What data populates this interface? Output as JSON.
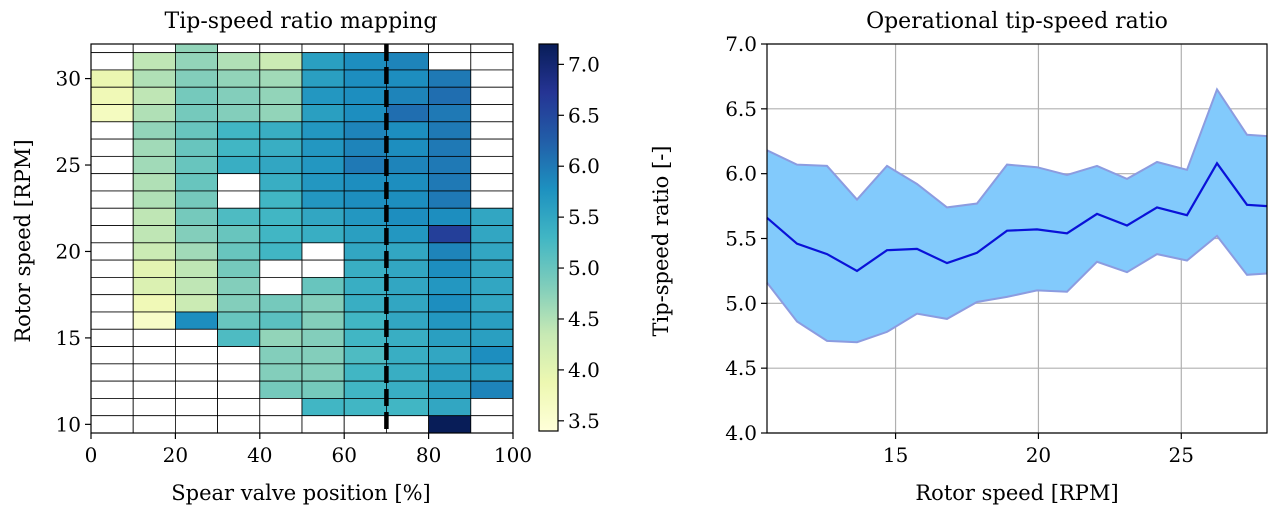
{
  "chart_data": [
    {
      "type": "heatmap",
      "title": "Tip-speed ratio mapping",
      "xlabel": "Spear valve position [%]",
      "ylabel": "Rotor speed [RPM]",
      "xlim": [
        0,
        100
      ],
      "ylim": [
        9.5,
        32
      ],
      "xticks": [
        "0",
        "20",
        "40",
        "60",
        "80",
        "100"
      ],
      "yticks": [
        "10",
        "15",
        "20",
        "25",
        "30"
      ],
      "x_bins": [
        0,
        10,
        20,
        30,
        40,
        50,
        60,
        70,
        80,
        90,
        100
      ],
      "rpm_rows": [
        31.5,
        30.5,
        29.5,
        28.5,
        27.5,
        26.5,
        25.5,
        24.5,
        23.5,
        22.5,
        21.5,
        20.5,
        19.5,
        18.5,
        17.5,
        16.5,
        15.5,
        14.5,
        13.5,
        12.5,
        11.5,
        10.5,
        9.5
      ],
      "values": [
        [
          null,
          null,
          4.7,
          null,
          null,
          null,
          null,
          null,
          null,
          null
        ],
        [
          null,
          4.4,
          4.7,
          4.5,
          4.3,
          5.6,
          5.8,
          5.9,
          null,
          null
        ],
        [
          3.9,
          4.5,
          4.8,
          4.7,
          4.6,
          5.6,
          5.8,
          5.8,
          6.0,
          null
        ],
        [
          3.8,
          4.4,
          4.9,
          4.8,
          4.7,
          5.7,
          5.8,
          5.9,
          6.1,
          null
        ],
        [
          3.7,
          4.5,
          4.9,
          4.8,
          4.7,
          5.6,
          5.8,
          6.1,
          6.0,
          null
        ],
        [
          null,
          4.7,
          5.0,
          5.3,
          5.4,
          5.7,
          5.9,
          5.8,
          6.0,
          null
        ],
        [
          null,
          4.6,
          5.0,
          5.3,
          5.4,
          5.7,
          5.9,
          5.8,
          6.0,
          null
        ],
        [
          null,
          4.6,
          5.0,
          5.4,
          5.5,
          5.7,
          6.0,
          5.9,
          6.0,
          null
        ],
        [
          null,
          4.5,
          5.0,
          null,
          5.4,
          5.7,
          5.8,
          5.8,
          6.0,
          null
        ],
        [
          null,
          4.5,
          4.9,
          null,
          5.3,
          5.7,
          5.8,
          5.8,
          6.0,
          null
        ],
        [
          null,
          4.4,
          4.9,
          5.2,
          5.3,
          5.5,
          5.7,
          5.8,
          5.8,
          5.5
        ],
        [
          null,
          4.4,
          4.8,
          5.0,
          5.3,
          5.4,
          5.6,
          5.7,
          6.6,
          5.5
        ],
        [
          null,
          4.3,
          4.6,
          5.0,
          5.3,
          null,
          5.5,
          5.5,
          5.9,
          5.5
        ],
        [
          null,
          4.0,
          4.4,
          4.9,
          null,
          null,
          5.4,
          5.5,
          5.8,
          5.5
        ],
        [
          null,
          4.1,
          4.4,
          4.8,
          null,
          5.0,
          5.4,
          5.5,
          5.7,
          5.5
        ],
        [
          null,
          3.8,
          4.3,
          4.8,
          4.9,
          4.8,
          5.4,
          5.5,
          5.8,
          5.5
        ],
        [
          null,
          3.6,
          5.8,
          5.0,
          5.1,
          4.8,
          5.3,
          5.5,
          5.7,
          5.6
        ],
        [
          null,
          null,
          null,
          5.2,
          4.7,
          4.8,
          5.3,
          5.4,
          5.6,
          5.6
        ],
        [
          null,
          null,
          null,
          null,
          4.8,
          4.8,
          5.2,
          5.4,
          5.5,
          5.8
        ],
        [
          null,
          null,
          null,
          null,
          4.8,
          4.8,
          5.3,
          5.4,
          5.6,
          5.6
        ],
        [
          null,
          null,
          null,
          null,
          4.9,
          4.9,
          5.3,
          5.4,
          5.6,
          5.9
        ],
        [
          null,
          null,
          null,
          null,
          null,
          5.3,
          5.3,
          5.3,
          5.5,
          null
        ],
        [
          null,
          null,
          null,
          null,
          null,
          null,
          null,
          null,
          7.2,
          null
        ]
      ],
      "dashed_line_x": 70,
      "colorbar": {
        "range": [
          3.4,
          7.2
        ],
        "ticks": [
          "3.5",
          "4.0",
          "4.5",
          "5.0",
          "5.5",
          "6.0",
          "6.5",
          "7.0"
        ],
        "colormap": [
          "#ffffd9",
          "#edf8b1",
          "#c7e9b4",
          "#7fcdbb",
          "#41b6c4",
          "#1d91c0",
          "#225ea8",
          "#253494",
          "#081d58"
        ]
      }
    },
    {
      "type": "area",
      "title": "Operational tip-speed ratio",
      "xlabel": "Rotor speed [RPM]",
      "ylabel": "Tip-speed ratio [-]",
      "xlim": [
        10.5,
        28
      ],
      "ylim": [
        4.0,
        7.0
      ],
      "xticks": [
        "15",
        "20",
        "25"
      ],
      "yticks": [
        "4.0",
        "4.5",
        "5.0",
        "5.5",
        "6.0",
        "6.5",
        "7.0"
      ],
      "grid": true,
      "x": [
        10.5,
        11.55,
        12.6,
        13.65,
        14.7,
        15.75,
        16.8,
        17.85,
        18.9,
        19.95,
        21.0,
        22.05,
        23.1,
        24.15,
        25.2,
        26.25,
        27.3,
        28.0
      ],
      "mean": [
        5.66,
        5.46,
        5.38,
        5.25,
        5.41,
        5.42,
        5.31,
        5.39,
        5.56,
        5.57,
        5.54,
        5.69,
        5.6,
        5.74,
        5.68,
        6.08,
        5.76,
        5.75
      ],
      "upper": [
        6.18,
        6.07,
        6.06,
        5.8,
        6.06,
        5.92,
        5.74,
        5.77,
        6.07,
        6.05,
        5.99,
        6.06,
        5.96,
        6.09,
        6.03,
        6.65,
        6.3,
        6.29
      ],
      "lower": [
        5.16,
        4.86,
        4.71,
        4.7,
        4.78,
        4.92,
        4.88,
        5.01,
        5.05,
        5.1,
        5.09,
        5.32,
        5.24,
        5.38,
        5.33,
        5.52,
        5.22,
        5.23
      ],
      "colors": {
        "band": "#82cafc",
        "band_edge": "#8c9ce0",
        "line": "#0a12d8"
      }
    }
  ]
}
